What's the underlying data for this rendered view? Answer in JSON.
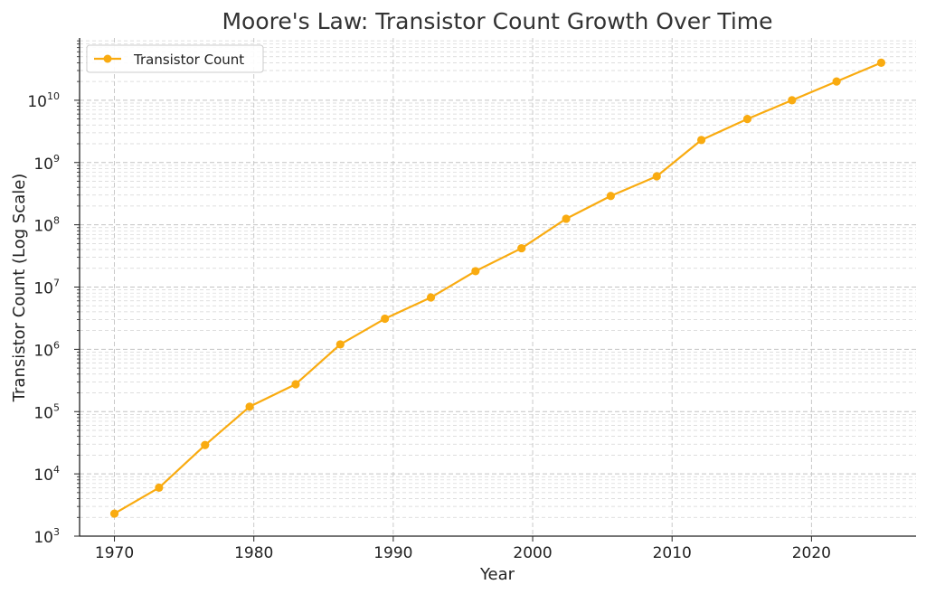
{
  "chart_data": {
    "type": "line",
    "title": "Moore's Law: Transistor Count Growth Over Time",
    "xlabel": "Year",
    "ylabel": "Transistor Count (Log Scale)",
    "yscale": "log",
    "xlim": [
      1967.5,
      2027.5
    ],
    "ylim": [
      1000,
      100000000000
    ],
    "grid": true,
    "legend_position": "top-left",
    "x_ticks": [
      1970,
      1980,
      1990,
      2000,
      2010,
      2020
    ],
    "y_ticks": [
      {
        "base": "10",
        "exp": "3",
        "value": 1000
      },
      {
        "base": "10",
        "exp": "4",
        "value": 10000
      },
      {
        "base": "10",
        "exp": "5",
        "value": 100000
      },
      {
        "base": "10",
        "exp": "6",
        "value": 1000000
      },
      {
        "base": "10",
        "exp": "7",
        "value": 10000000
      },
      {
        "base": "10",
        "exp": "8",
        "value": 100000000
      },
      {
        "base": "10",
        "exp": "9",
        "value": 1000000000
      },
      {
        "base": "10",
        "exp": "10",
        "value": 10000000000
      }
    ],
    "series": [
      {
        "name": "Transistor Count",
        "color": "#f9ab10",
        "x": [
          1970,
          1973.2,
          1976.5,
          1979.7,
          1983,
          1986.2,
          1989.4,
          1992.7,
          1995.9,
          1999.2,
          2002.4,
          2005.6,
          2008.9,
          2012.1,
          2015.4,
          2018.6,
          2021.8,
          2025
        ],
        "y": [
          2300,
          6000,
          29000,
          120000,
          275000,
          1200000,
          3100000,
          6800000,
          18000000,
          42000000,
          125000000,
          290000000,
          600000000,
          2300000000,
          5000000000,
          10000000000,
          20000000000,
          40000000000
        ]
      }
    ]
  }
}
